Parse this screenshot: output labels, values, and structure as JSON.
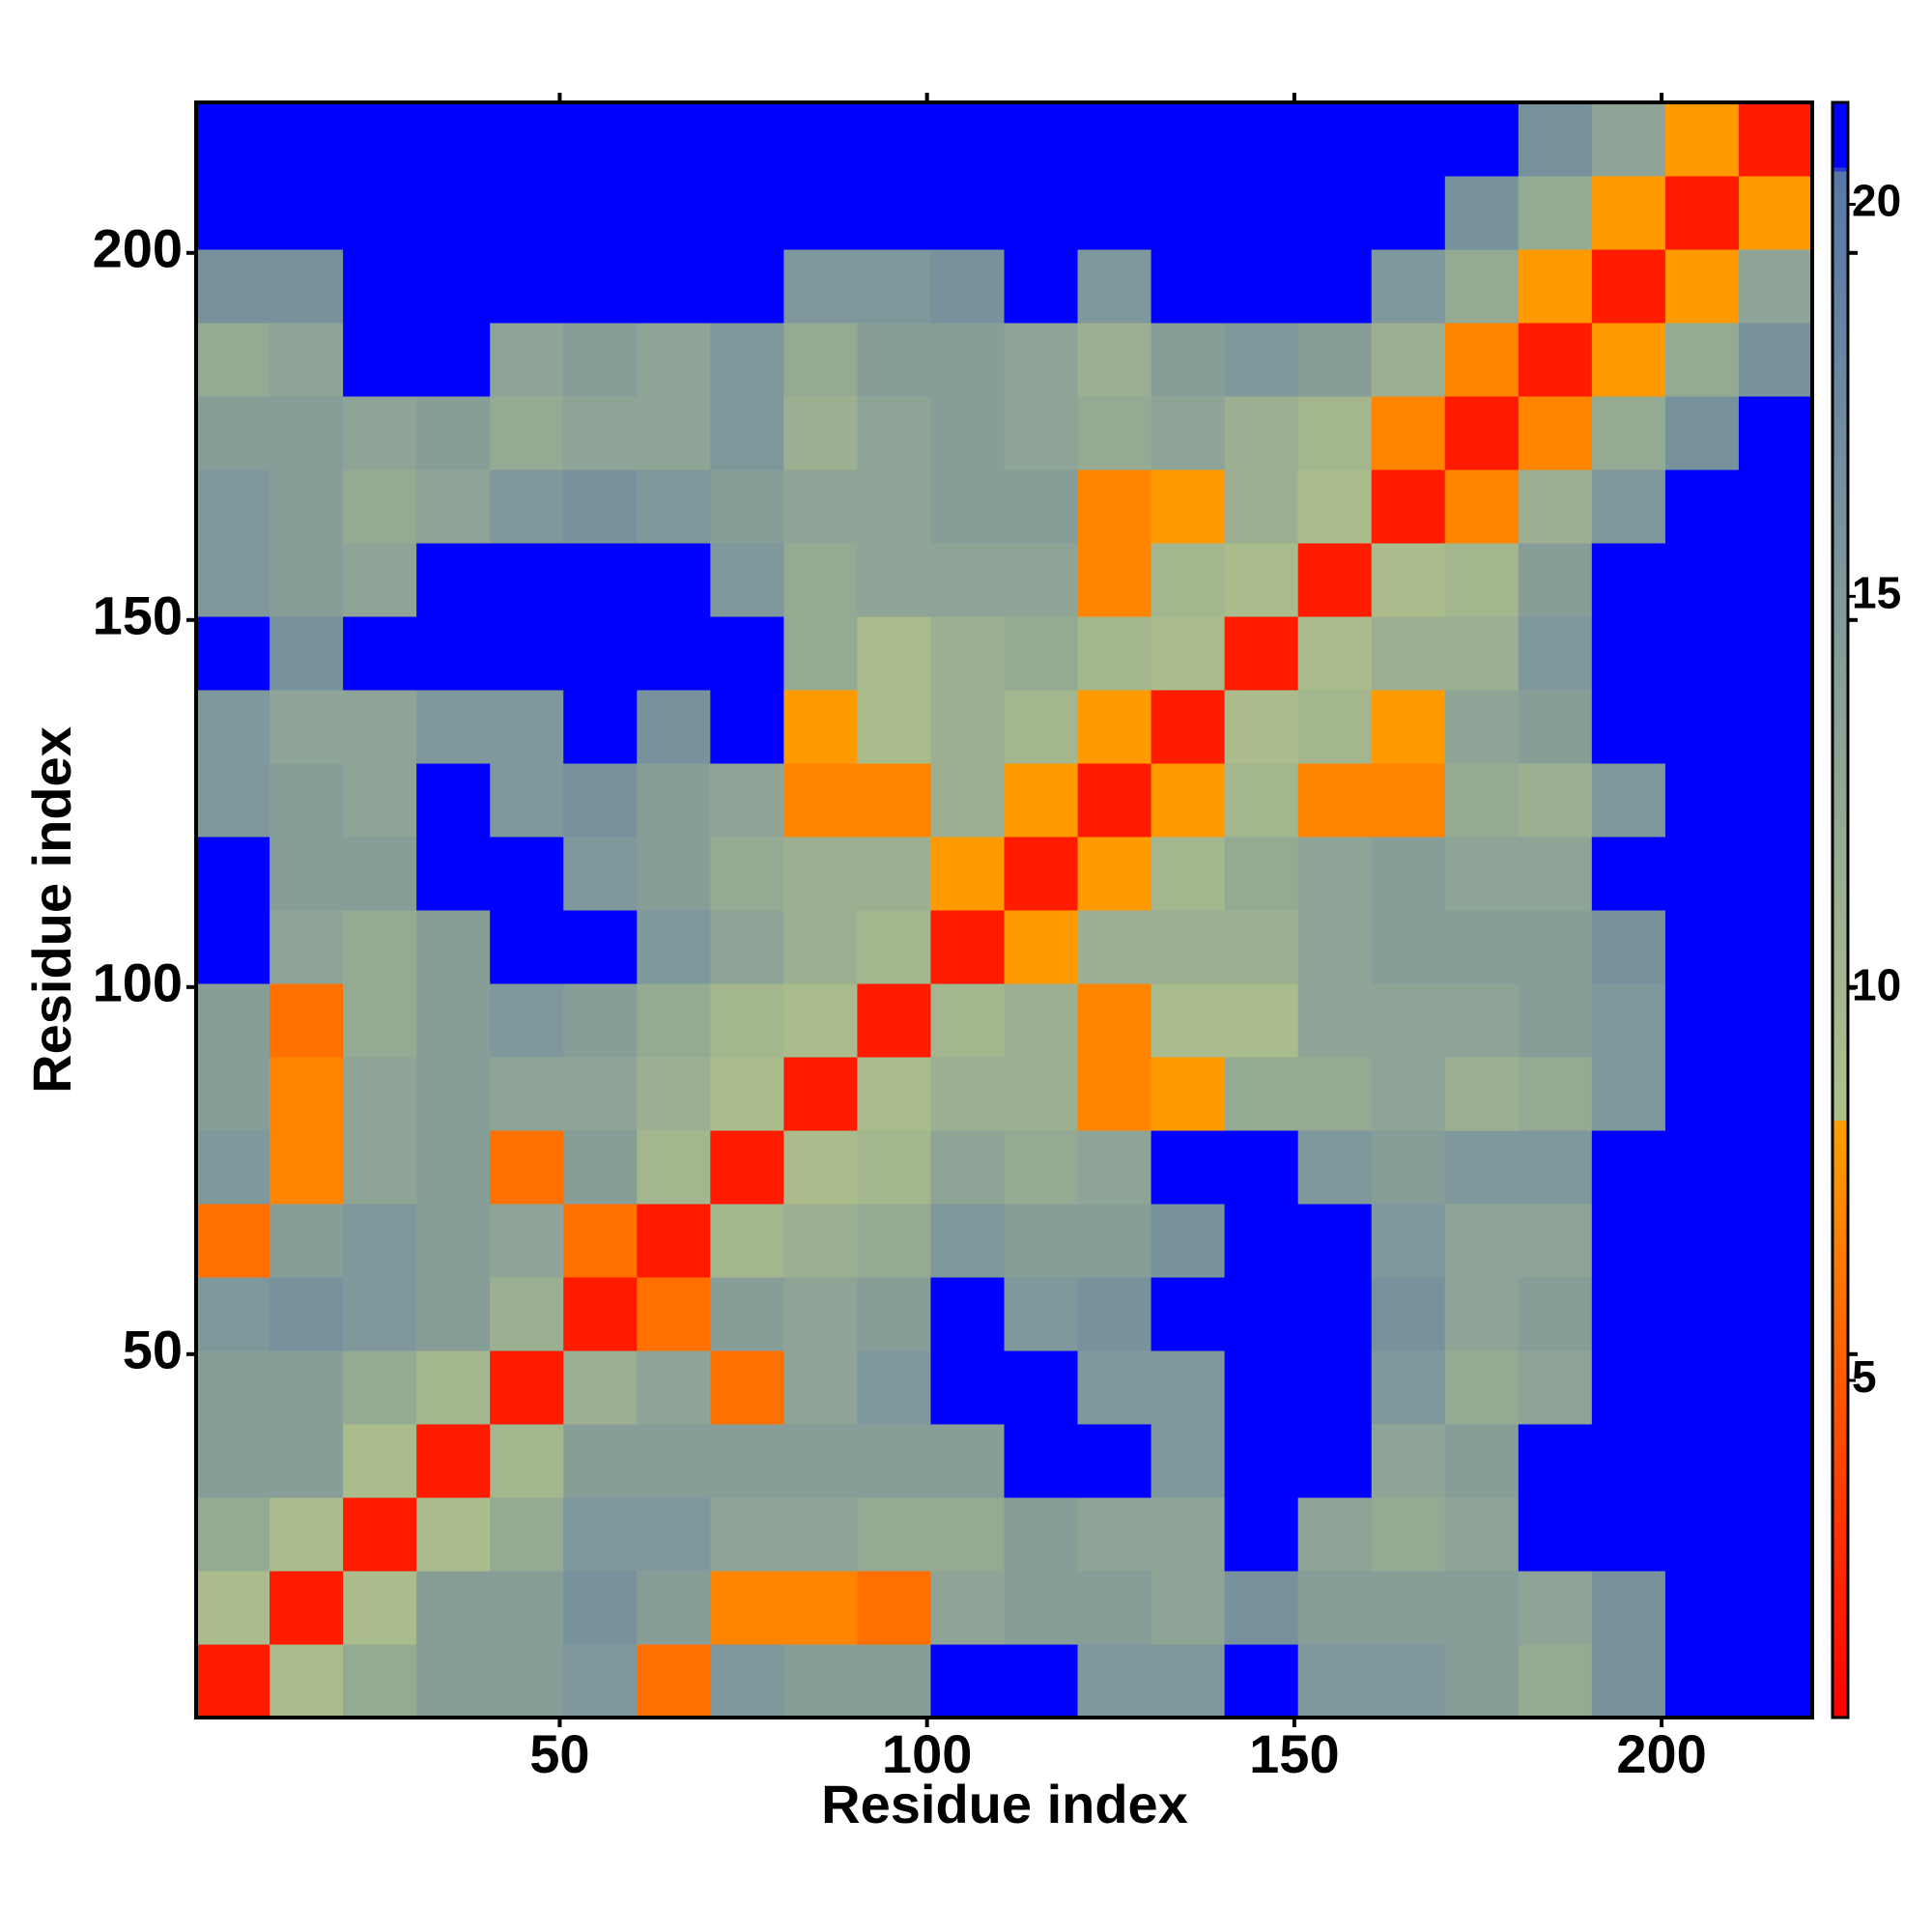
{
  "chart_data": {
    "type": "heatmap",
    "xlabel": "Residue index",
    "ylabel": "Residue index",
    "x": [
      5.5,
      15.5,
      25.5,
      35.5,
      45.5,
      55.5,
      65.5,
      75.5,
      85.5,
      95.5,
      105.5,
      115.5,
      125.5,
      135.5,
      145.5,
      155.5,
      165.5,
      175.5,
      185.5,
      195.5,
      205.5,
      215.5
    ],
    "y": [
      5.5,
      15.5,
      25.5,
      35.5,
      45.5,
      55.5,
      65.5,
      75.5,
      85.5,
      95.5,
      105.5,
      115.5,
      125.5,
      135.5,
      145.5,
      155.5,
      165.5,
      175.5,
      185.5,
      195.5,
      205.5,
      215.5
    ],
    "xlim": [
      0.5,
      220.5
    ],
    "ylim": [
      0.5,
      220.5
    ],
    "xticks": [
      50,
      100,
      150,
      200
    ],
    "yticks": [
      50,
      100,
      150,
      200
    ],
    "zlim": [
      0.7,
      21.3
    ],
    "zticks": [
      5,
      10,
      15,
      20
    ],
    "colorscale": [
      [
        0.7,
        "#ff0000"
      ],
      [
        8.3,
        "#ffa000"
      ],
      [
        8.31,
        "#b0c08a"
      ],
      [
        20.4,
        "#5878a8"
      ],
      [
        20.5,
        "#0000ff"
      ],
      [
        21.3,
        "#0000ff"
      ]
    ],
    "values": [
      [
        2,
        9,
        12,
        14,
        14,
        15,
        6,
        15,
        14,
        14,
        21,
        21,
        15,
        15,
        21,
        15,
        15,
        14,
        12,
        16,
        21,
        21
      ],
      [
        9,
        2,
        9,
        14,
        14,
        16,
        14,
        7,
        7,
        6,
        13,
        14,
        14,
        13,
        16,
        14,
        14,
        14,
        13,
        16,
        21,
        21
      ],
      [
        12,
        9,
        2,
        9,
        12,
        15,
        15,
        13,
        13,
        12,
        12,
        14,
        13,
        13,
        21,
        13,
        12,
        13,
        21,
        21,
        21,
        21
      ],
      [
        14,
        14,
        9,
        2,
        10,
        14,
        14,
        14,
        14,
        14,
        14,
        21,
        21,
        15,
        21,
        21,
        13,
        14,
        21,
        21,
        21,
        21
      ],
      [
        14,
        14,
        12,
        10,
        2,
        11,
        13,
        6,
        13,
        15,
        21,
        21,
        15,
        15,
        21,
        21,
        15,
        12,
        13,
        21,
        21,
        21
      ],
      [
        15,
        16,
        15,
        14,
        11,
        2,
        6,
        14,
        13,
        14,
        21,
        15,
        16,
        21,
        21,
        21,
        16,
        13,
        14,
        21,
        21,
        21
      ],
      [
        6,
        14,
        15,
        14,
        13,
        6,
        2,
        10,
        11,
        12,
        15,
        14,
        14,
        16,
        21,
        21,
        15,
        13,
        13,
        21,
        21,
        21
      ],
      [
        15,
        7,
        13,
        14,
        6,
        14,
        10,
        2,
        9,
        10,
        13,
        12,
        13,
        21,
        21,
        15,
        14,
        15,
        15,
        21,
        21,
        21
      ],
      [
        14,
        7,
        13,
        14,
        13,
        13,
        11,
        9,
        2,
        9,
        11,
        11,
        7,
        8,
        12,
        12,
        13,
        11,
        12,
        15,
        21,
        21
      ],
      [
        14,
        6,
        12,
        14,
        15,
        14,
        12,
        10,
        9,
        2,
        10,
        11,
        7,
        9,
        9,
        13,
        13,
        13,
        14,
        15,
        21,
        21
      ],
      [
        21,
        13,
        12,
        14,
        21,
        21,
        15,
        13,
        11,
        10,
        2,
        8,
        11,
        11,
        11,
        13,
        14,
        14,
        14,
        16,
        21,
        21
      ],
      [
        21,
        14,
        14,
        21,
        21,
        15,
        14,
        12,
        11,
        11,
        8,
        2,
        8,
        10,
        12,
        13,
        14,
        13,
        13,
        21,
        21,
        21
      ],
      [
        15,
        14,
        13,
        21,
        15,
        16,
        14,
        13,
        7,
        7,
        11,
        8,
        2,
        8,
        10,
        7,
        7,
        12,
        11,
        15,
        21,
        21
      ],
      [
        15,
        13,
        13,
        15,
        15,
        21,
        16,
        21,
        8,
        9,
        11,
        10,
        8,
        2,
        9,
        10,
        8,
        13,
        14,
        21,
        21,
        21
      ],
      [
        21,
        16,
        21,
        21,
        21,
        21,
        21,
        21,
        12,
        9,
        11,
        12,
        10,
        9,
        2,
        9,
        11,
        11,
        15,
        21,
        21,
        21
      ],
      [
        15,
        14,
        13,
        21,
        21,
        21,
        21,
        15,
        12,
        13,
        13,
        13,
        7,
        10,
        9,
        2,
        9,
        10,
        14,
        21,
        21,
        21
      ],
      [
        15,
        14,
        12,
        13,
        15,
        16,
        15,
        14,
        13,
        13,
        14,
        14,
        7,
        8,
        11,
        9,
        2,
        7,
        11,
        15,
        21,
        21
      ],
      [
        14,
        14,
        13,
        14,
        12,
        13,
        13,
        15,
        11,
        13,
        14,
        13,
        12,
        13,
        11,
        10,
        7,
        2,
        7,
        12,
        16,
        21
      ],
      [
        12,
        13,
        21,
        21,
        13,
        14,
        13,
        15,
        12,
        14,
        14,
        13,
        11,
        14,
        15,
        14,
        11,
        7,
        2,
        8,
        12,
        16
      ],
      [
        16,
        16,
        21,
        21,
        21,
        21,
        21,
        21,
        15,
        15,
        16,
        21,
        15,
        21,
        21,
        21,
        15,
        12,
        8,
        2,
        8,
        13
      ],
      [
        21,
        21,
        21,
        21,
        21,
        21,
        21,
        21,
        21,
        21,
        21,
        21,
        21,
        21,
        21,
        21,
        21,
        16,
        12,
        8,
        2,
        8
      ],
      [
        21,
        21,
        21,
        21,
        21,
        21,
        21,
        21,
        21,
        21,
        21,
        21,
        21,
        21,
        21,
        21,
        21,
        21,
        16,
        13,
        8,
        2
      ]
    ]
  }
}
